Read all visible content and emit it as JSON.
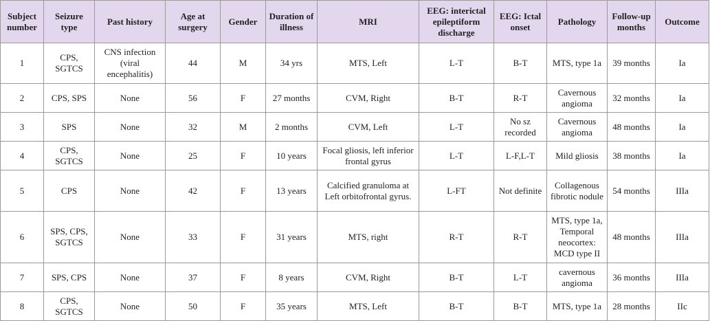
{
  "table": {
    "header": [
      "Subject number",
      "Seizure type",
      "Past history",
      "Age at surgery",
      "Gender",
      "Duration of illness",
      "MRI",
      "EEG: interictal epileptiform discharge",
      "EEG: Ictal onset",
      "Pathology",
      "Follow-up months",
      "Outcome"
    ],
    "rows": [
      [
        "1",
        "CPS, SGTCS",
        "CNS infection (viral encephalitis)",
        "44",
        "M",
        "34 yrs",
        "MTS, Left",
        "L-T",
        "B-T",
        "MTS, type 1a",
        "39 months",
        "Ia"
      ],
      [
        "2",
        "CPS, SPS",
        "None",
        "56",
        "F",
        "27 months",
        "CVM, Right",
        "B-T",
        "R-T",
        "Cavernous angioma",
        "32 months",
        "Ia"
      ],
      [
        "3",
        "SPS",
        "None",
        "32",
        "M",
        "2 months",
        "CVM, Left",
        "L-T",
        "No sz recorded",
        "Cavernous angioma",
        "48 months",
        "Ia"
      ],
      [
        "4",
        "CPS, SGTCS",
        "None",
        "25",
        "F",
        "10 years",
        "Focal gliosis, left inferior frontal gyrus",
        "L-T",
        "L-F,L-T",
        "Mild gliosis",
        "38 months",
        "Ia"
      ],
      [
        "5",
        "CPS",
        "None",
        "42",
        "F",
        "13 years",
        "Calcified granuloma at Left orbitofrontal gyrus.",
        "L-FT",
        "Not definite",
        "Collagenous fibrotic nodule",
        "54 months",
        "IIIa"
      ],
      [
        "6",
        "SPS, CPS, SGTCS",
        "None",
        "33",
        "F",
        "31 years",
        "MTS, right",
        "R-T",
        "R-T",
        "MTS, type 1a, Temporal neocortex: MCD type II",
        "48 months",
        "IIIa"
      ],
      [
        "7",
        "SPS, CPS",
        "None",
        "37",
        "F",
        "8 years",
        "CVM, Right",
        "B-T",
        "L-T",
        "cavernous angioma",
        "36 months",
        "IIIa"
      ],
      [
        "8",
        "CPS, SGTCS",
        "None",
        "50",
        "F",
        "35 years",
        "MTS, Left",
        "B-T",
        "B-T",
        "MTS, type 1a",
        "28 months",
        "IIc"
      ]
    ]
  }
}
